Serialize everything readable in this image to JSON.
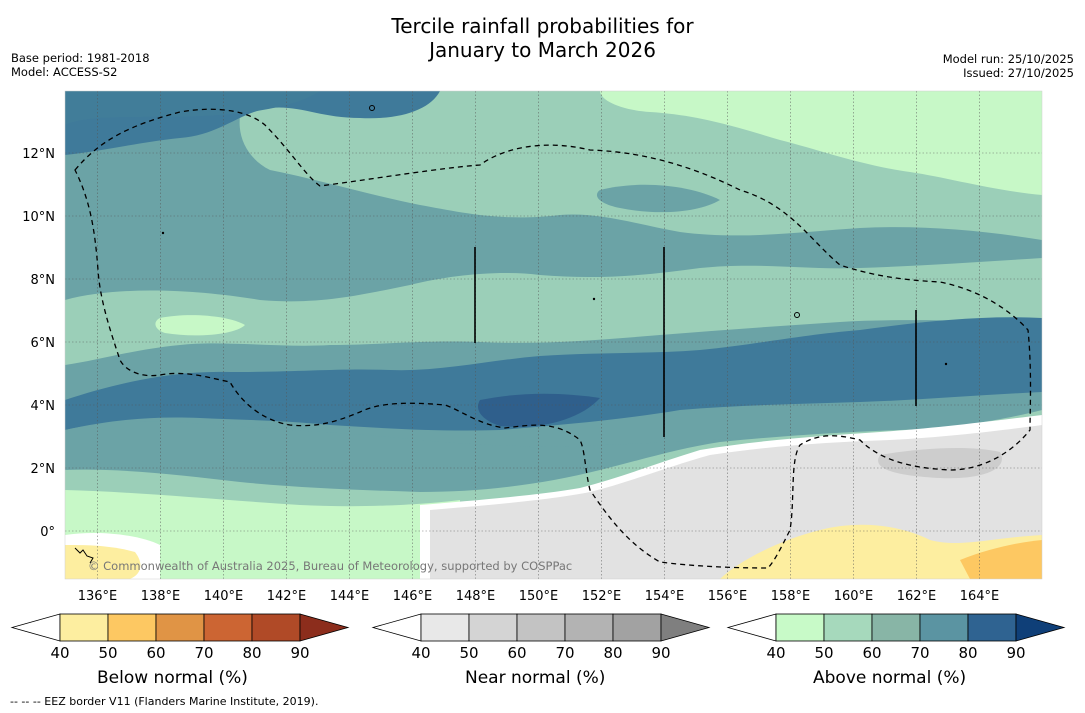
{
  "title_line1": "Tercile rainfall probabilities for",
  "title_line2": "January to March 2026",
  "base_period": "Base period: 1981-2018",
  "model": "Model: ACCESS-S2",
  "model_run": "Model run: 25/10/2025",
  "issued": "Issued: 27/10/2025",
  "copyright": "© Commonwealth of Australia 2025, Bureau of Meteorology, supported by COSPPac",
  "footnote": "--  --  -- EEZ border V11 (Flanders Marine Institute, 2019).",
  "lon_labels": [
    "136°E",
    "138°E",
    "140°E",
    "142°E",
    "144°E",
    "146°E",
    "148°E",
    "150°E",
    "152°E",
    "154°E",
    "156°E",
    "158°E",
    "160°E",
    "162°E",
    "164°E"
  ],
  "lat_labels": [
    "12°N",
    "10°N",
    "8°N",
    "6°N",
    "4°N",
    "2°N",
    "0°"
  ],
  "legends": [
    {
      "name": "below",
      "title": "Below normal (%)",
      "ticks": [
        "40",
        "50",
        "60",
        "70",
        "80",
        "90"
      ],
      "colors": [
        "#ffffff",
        "#fdeea0",
        "#fdc862",
        "#e09445",
        "#cc6533",
        "#b04a27",
        "#8c2d1c"
      ]
    },
    {
      "name": "near",
      "title": "Near normal (%)",
      "ticks": [
        "40",
        "50",
        "60",
        "70",
        "80",
        "90"
      ],
      "colors": [
        "#ffffff",
        "#e8e8e8",
        "#d4d4d4",
        "#c3c3c3",
        "#b3b3b3",
        "#a2a2a2",
        "#7f7f7f"
      ]
    },
    {
      "name": "above",
      "title": "Above normal (%)",
      "ticks": [
        "40",
        "50",
        "60",
        "70",
        "80",
        "90"
      ],
      "colors": [
        "#ffffff",
        "#c8fac8",
        "#a6d9bc",
        "#88b5a6",
        "#5b94a2",
        "#2f6391",
        "#0f3f78"
      ]
    }
  ]
}
